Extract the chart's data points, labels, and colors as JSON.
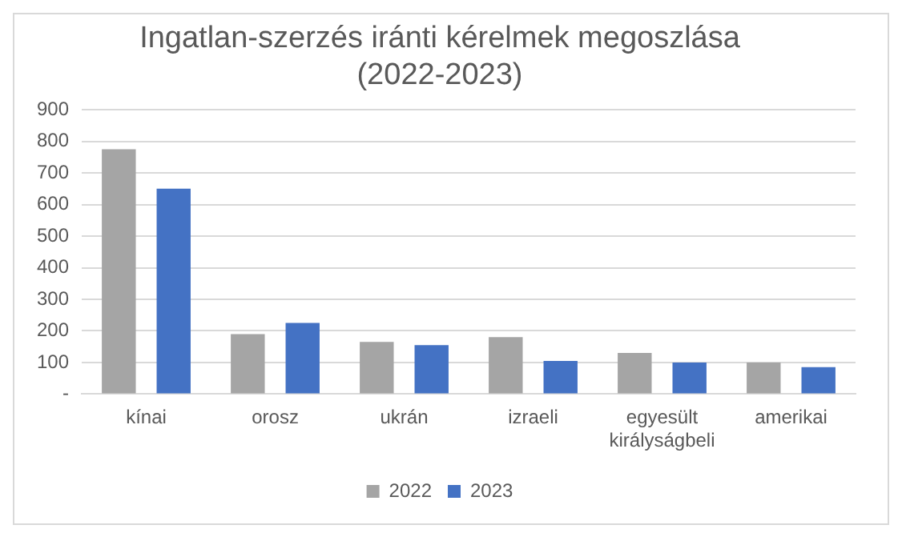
{
  "chart_data": {
    "type": "bar",
    "title": [
      "Ingatlan-szerzés iránti kérelmek megoszlása",
      "(2022-2023)"
    ],
    "categories": [
      "kínai",
      "orosz",
      "ukrán",
      "izraeli",
      "egyesült királyságbeli",
      "amerikai"
    ],
    "series": [
      {
        "name": "2022",
        "color": "#a5a5a5",
        "values": [
          775,
          190,
          165,
          180,
          130,
          100
        ]
      },
      {
        "name": "2023",
        "color": "#4472c4",
        "values": [
          650,
          225,
          155,
          105,
          100,
          85
        ]
      }
    ],
    "ylim": [
      0,
      900
    ],
    "yticks": [
      {
        "value": 0,
        "label": "-"
      },
      100,
      200,
      300,
      400,
      500,
      600,
      700,
      800,
      900
    ],
    "grid": "y",
    "legend": "bottom"
  }
}
